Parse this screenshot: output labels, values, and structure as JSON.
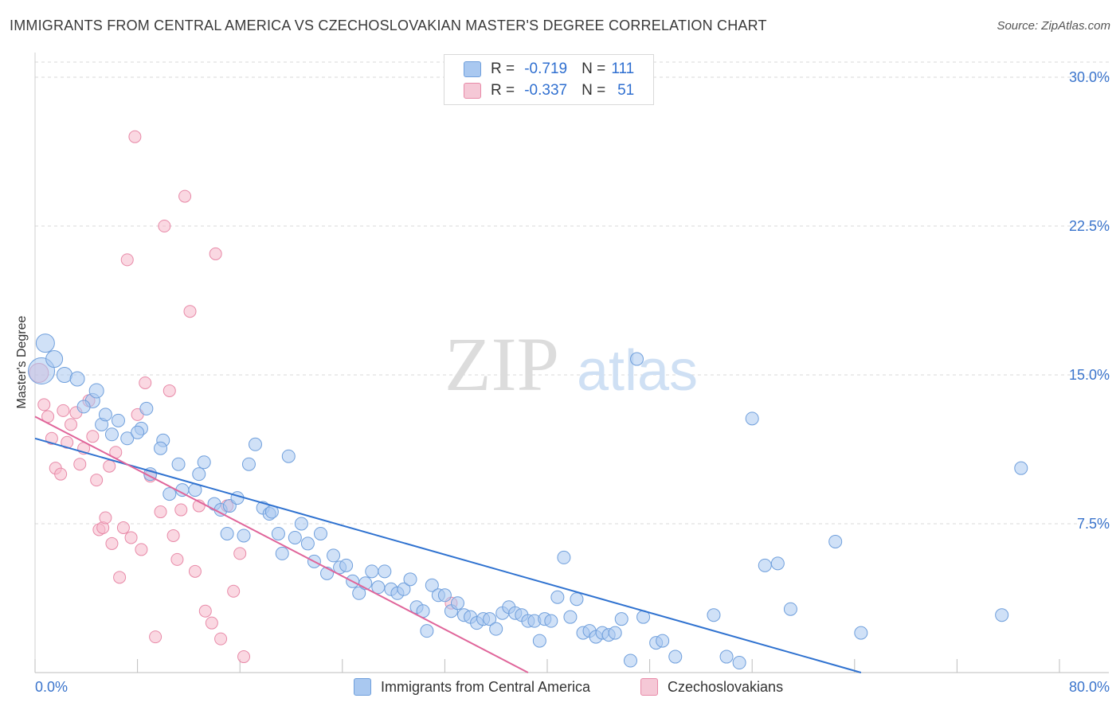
{
  "title": "IMMIGRANTS FROM CENTRAL AMERICA VS CZECHOSLOVAKIAN MASTER'S DEGREE CORRELATION CHART",
  "source": "Source: ZipAtlas.com",
  "watermark": {
    "zip": "ZIP",
    "atlas": "atlas"
  },
  "colors": {
    "blue_fill": "#a9c8f0",
    "blue_stroke": "#6f9fdc",
    "blue_line": "#2f72d0",
    "pink_fill": "#f5b8cb",
    "pink_stroke": "#e88aa8",
    "pink_line": "#e0659a",
    "tick_text": "#3a74cc",
    "grid": "#d8d8d8"
  },
  "legend": {
    "series": [
      {
        "r_label": "R =",
        "r_value": "-0.719",
        "n_label": "N =",
        "n_value": "111"
      },
      {
        "r_label": "R =",
        "r_value": "-0.337",
        "n_label": "N =",
        "n_value": "51"
      }
    ]
  },
  "chart_data": {
    "type": "scatter",
    "title": "IMMIGRANTS FROM CENTRAL AMERICA VS CZECHOSLOVAKIAN MASTER'S DEGREE CORRELATION CHART",
    "xlabel": "",
    "ylabel": "Master's Degree",
    "xlim": [
      0,
      80
    ],
    "ylim": [
      0,
      30
    ],
    "x_tick_labels": [
      "0.0%",
      "80.0%"
    ],
    "y_ticks": [
      7.5,
      15.0,
      22.5,
      30.0
    ],
    "y_tick_labels": [
      "7.5%",
      "15.0%",
      "22.5%",
      "30.0%"
    ],
    "grid": true,
    "legend_position": "top-center and bottom",
    "series": [
      {
        "name": "Immigrants from Central America",
        "color": "#a9c8f0",
        "trend": {
          "x": [
            0,
            64.5
          ],
          "y": [
            11.8,
            0
          ]
        },
        "points": [
          [
            0.5,
            15.2,
            30
          ],
          [
            0.8,
            16.6,
            20
          ],
          [
            1.5,
            15.8,
            18
          ],
          [
            2.3,
            15.0,
            16
          ],
          [
            3.3,
            14.8,
            15
          ],
          [
            4.5,
            13.7,
            15
          ],
          [
            4.8,
            14.2,
            15
          ],
          [
            3.8,
            13.4,
            13
          ],
          [
            5.2,
            12.5,
            13
          ],
          [
            6.0,
            12.0,
            13
          ],
          [
            5.5,
            13.0,
            13
          ],
          [
            6.5,
            12.7,
            13
          ],
          [
            7.2,
            11.8,
            13
          ],
          [
            8.3,
            12.3,
            13
          ],
          [
            8.0,
            12.1,
            13
          ],
          [
            8.7,
            13.3,
            13
          ],
          [
            9.0,
            10.0,
            13
          ],
          [
            10.0,
            11.7,
            13
          ],
          [
            9.8,
            11.3,
            13
          ],
          [
            10.5,
            9.0,
            13
          ],
          [
            11.2,
            10.5,
            13
          ],
          [
            11.5,
            9.2,
            13
          ],
          [
            12.5,
            9.2,
            13
          ],
          [
            12.8,
            10.0,
            13
          ],
          [
            13.2,
            10.6,
            13
          ],
          [
            14.0,
            8.5,
            13
          ],
          [
            14.5,
            8.2,
            13
          ],
          [
            15.0,
            7.0,
            13
          ],
          [
            15.2,
            8.4,
            13
          ],
          [
            15.8,
            8.8,
            13
          ],
          [
            16.3,
            6.9,
            13
          ],
          [
            16.7,
            10.5,
            13
          ],
          [
            17.2,
            11.5,
            13
          ],
          [
            17.8,
            8.3,
            13
          ],
          [
            18.3,
            8.0,
            13
          ],
          [
            18.5,
            8.1,
            13
          ],
          [
            19.0,
            7.0,
            13
          ],
          [
            19.3,
            6.0,
            13
          ],
          [
            19.8,
            10.9,
            13
          ],
          [
            20.3,
            6.8,
            13
          ],
          [
            20.8,
            7.5,
            13
          ],
          [
            21.3,
            6.5,
            13
          ],
          [
            21.8,
            5.6,
            13
          ],
          [
            22.3,
            7.0,
            13
          ],
          [
            22.8,
            5.0,
            13
          ],
          [
            23.3,
            5.9,
            13
          ],
          [
            23.8,
            5.3,
            13
          ],
          [
            24.3,
            5.4,
            13
          ],
          [
            24.8,
            4.6,
            13
          ],
          [
            25.3,
            4.0,
            13
          ],
          [
            25.8,
            4.5,
            13
          ],
          [
            26.3,
            5.1,
            13
          ],
          [
            26.8,
            4.3,
            13
          ],
          [
            27.3,
            5.1,
            13
          ],
          [
            27.8,
            4.2,
            13
          ],
          [
            28.3,
            4.0,
            13
          ],
          [
            28.8,
            4.2,
            13
          ],
          [
            29.3,
            4.7,
            13
          ],
          [
            29.8,
            3.3,
            13
          ],
          [
            30.3,
            3.1,
            13
          ],
          [
            30.6,
            2.1,
            13
          ],
          [
            31.0,
            4.4,
            13
          ],
          [
            31.5,
            3.9,
            13
          ],
          [
            32.0,
            3.9,
            13
          ],
          [
            32.5,
            3.1,
            13
          ],
          [
            33.0,
            3.5,
            13
          ],
          [
            33.5,
            2.9,
            13
          ],
          [
            34.0,
            2.8,
            13
          ],
          [
            34.5,
            2.5,
            13
          ],
          [
            35.0,
            2.7,
            13
          ],
          [
            35.5,
            2.7,
            13
          ],
          [
            36.0,
            2.2,
            13
          ],
          [
            36.5,
            3.0,
            13
          ],
          [
            37.0,
            3.3,
            13
          ],
          [
            37.5,
            3.0,
            13
          ],
          [
            38.0,
            2.9,
            13
          ],
          [
            38.5,
            2.6,
            13
          ],
          [
            39.0,
            2.6,
            13
          ],
          [
            39.4,
            1.6,
            13
          ],
          [
            39.8,
            2.7,
            13
          ],
          [
            40.3,
            2.6,
            13
          ],
          [
            40.8,
            3.8,
            13
          ],
          [
            41.3,
            5.8,
            13
          ],
          [
            41.8,
            2.8,
            13
          ],
          [
            42.3,
            3.7,
            13
          ],
          [
            42.8,
            2.0,
            13
          ],
          [
            43.3,
            2.1,
            13
          ],
          [
            43.8,
            1.8,
            13
          ],
          [
            44.3,
            2.0,
            13
          ],
          [
            44.8,
            1.9,
            13
          ],
          [
            45.3,
            2.0,
            13
          ],
          [
            45.8,
            2.7,
            13
          ],
          [
            46.5,
            0.6,
            13
          ],
          [
            47.0,
            15.8,
            13
          ],
          [
            47.5,
            2.8,
            13
          ],
          [
            48.5,
            1.5,
            13
          ],
          [
            49.0,
            1.6,
            13
          ],
          [
            50.0,
            0.8,
            13
          ],
          [
            53.0,
            2.9,
            13
          ],
          [
            54.0,
            0.8,
            13
          ],
          [
            55.0,
            0.5,
            13
          ],
          [
            56.0,
            12.8,
            13
          ],
          [
            57.0,
            5.4,
            13
          ],
          [
            58.0,
            5.5,
            13
          ],
          [
            59.0,
            3.2,
            13
          ],
          [
            62.5,
            6.6,
            13
          ],
          [
            64.5,
            2.0,
            13
          ],
          [
            75.5,
            2.9,
            13
          ],
          [
            77.0,
            10.3,
            13
          ]
        ]
      },
      {
        "name": "Czechoslovakians",
        "color": "#f5b8cb",
        "trend": {
          "x": [
            0,
            38.5
          ],
          "y": [
            12.9,
            0
          ]
        },
        "points": [
          [
            0.3,
            15.1,
            22
          ],
          [
            0.7,
            13.5,
            13
          ],
          [
            1.0,
            12.9,
            13
          ],
          [
            1.3,
            11.8,
            13
          ],
          [
            1.6,
            10.3,
            13
          ],
          [
            2.0,
            10.0,
            13
          ],
          [
            2.2,
            13.2,
            13
          ],
          [
            2.5,
            11.6,
            13
          ],
          [
            2.8,
            12.5,
            13
          ],
          [
            3.2,
            13.1,
            13
          ],
          [
            3.5,
            10.5,
            13
          ],
          [
            3.8,
            11.3,
            13
          ],
          [
            4.2,
            13.7,
            13
          ],
          [
            4.5,
            11.9,
            13
          ],
          [
            4.8,
            9.7,
            13
          ],
          [
            5.0,
            7.2,
            13
          ],
          [
            5.3,
            7.3,
            13
          ],
          [
            5.5,
            7.8,
            13
          ],
          [
            5.8,
            10.4,
            13
          ],
          [
            6.0,
            6.5,
            13
          ],
          [
            6.3,
            11.1,
            13
          ],
          [
            6.6,
            4.8,
            13
          ],
          [
            6.9,
            7.3,
            13
          ],
          [
            7.2,
            20.8,
            13
          ],
          [
            7.5,
            6.8,
            13
          ],
          [
            7.8,
            27.0,
            13
          ],
          [
            8.0,
            13.0,
            13
          ],
          [
            8.3,
            6.2,
            13
          ],
          [
            8.6,
            14.6,
            13
          ],
          [
            9.0,
            9.9,
            13
          ],
          [
            9.4,
            1.8,
            13
          ],
          [
            9.8,
            8.1,
            13
          ],
          [
            10.1,
            22.5,
            13
          ],
          [
            10.5,
            14.2,
            13
          ],
          [
            10.8,
            6.9,
            13
          ],
          [
            11.1,
            5.7,
            13
          ],
          [
            11.4,
            8.2,
            13
          ],
          [
            11.7,
            24.0,
            13
          ],
          [
            12.1,
            18.2,
            13
          ],
          [
            12.5,
            5.1,
            13
          ],
          [
            12.8,
            8.4,
            13
          ],
          [
            13.3,
            3.1,
            13
          ],
          [
            13.8,
            2.5,
            13
          ],
          [
            14.1,
            21.1,
            13
          ],
          [
            14.5,
            1.7,
            13
          ],
          [
            15.0,
            8.4,
            13
          ],
          [
            15.5,
            4.1,
            13
          ],
          [
            16.0,
            6.0,
            13
          ],
          [
            16.3,
            0.8,
            13
          ],
          [
            32.5,
            3.5,
            13
          ]
        ]
      }
    ]
  },
  "bottom_legend": [
    {
      "label": "Immigrants from Central America"
    },
    {
      "label": "Czechoslovakians"
    }
  ]
}
